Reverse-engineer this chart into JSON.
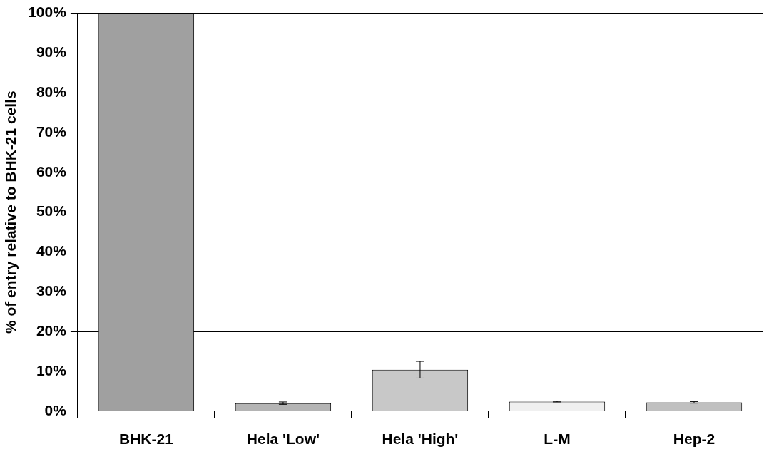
{
  "chart_data": {
    "type": "bar",
    "ylabel": "% of entry relative to BHK-21 cells",
    "categories": [
      "BHK-21",
      "Hela 'Low'",
      "Hela 'High'",
      "L-M",
      "Hep-2"
    ],
    "values": [
      100,
      2.0,
      10.4,
      2.4,
      2.2
    ],
    "errors": [
      null,
      0.3,
      2.1,
      0.1,
      0.2
    ],
    "colors": [
      "#a0a0a0",
      "#b4b4b4",
      "#c8c8c8",
      "#f0f0f0",
      "#c0c0c0"
    ],
    "ylim": [
      0,
      100
    ],
    "yticks": [
      {
        "value": 0,
        "label": "0%"
      },
      {
        "value": 10,
        "label": "10%"
      },
      {
        "value": 20,
        "label": "20%"
      },
      {
        "value": 30,
        "label": "30%"
      },
      {
        "value": 40,
        "label": "40%"
      },
      {
        "value": 50,
        "label": "50%"
      },
      {
        "value": 60,
        "label": "60%"
      },
      {
        "value": 70,
        "label": "70%"
      },
      {
        "value": 80,
        "label": "80%"
      },
      {
        "value": 90,
        "label": "90%"
      },
      {
        "value": 100,
        "label": "100%"
      }
    ],
    "grid": "y"
  }
}
